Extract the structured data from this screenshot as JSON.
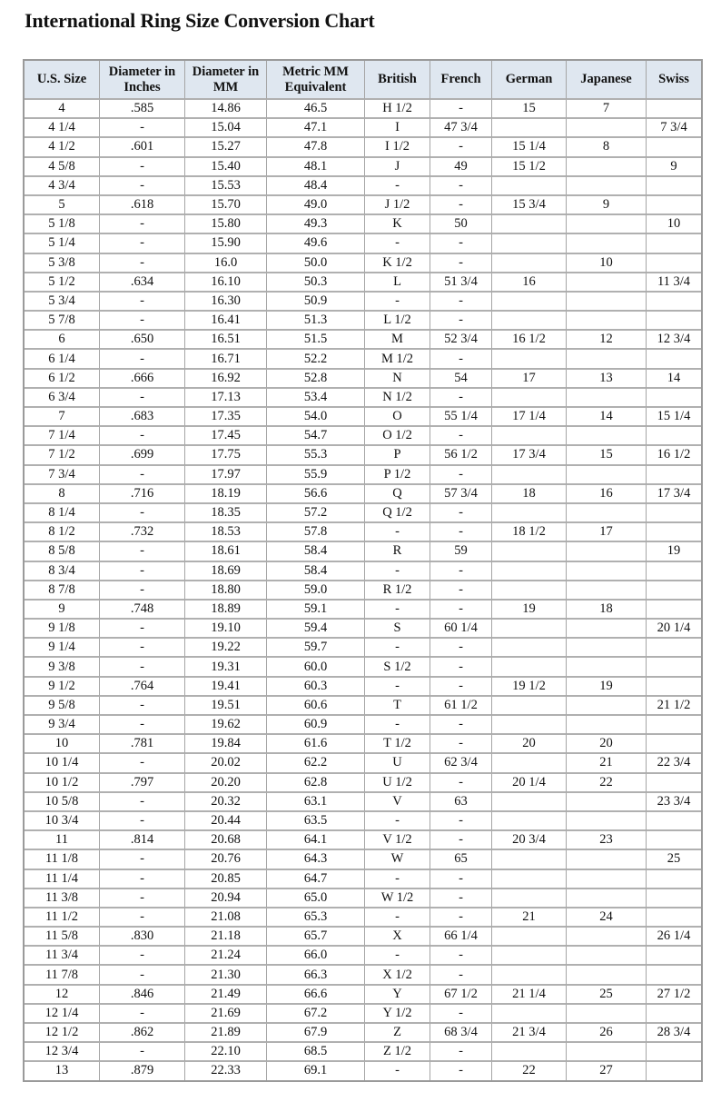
{
  "title": "International Ring Size Conversion Chart",
  "headers": [
    "U.S. Size",
    "Diameter in Inches",
    "Diameter in MM",
    "Metric MM Equivalent",
    "British",
    "French",
    "German",
    "Japanese",
    "Swiss"
  ],
  "rows": [
    [
      "4",
      ".585",
      "14.86",
      "46.5",
      "H 1/2",
      "-",
      "15",
      "7",
      ""
    ],
    [
      "4 1/4",
      "-",
      "15.04",
      "47.1",
      "I",
      "47 3/4",
      "",
      "",
      "7 3/4"
    ],
    [
      "4 1/2",
      ".601",
      "15.27",
      "47.8",
      "I 1/2",
      "-",
      "15 1/4",
      "8",
      ""
    ],
    [
      "4 5/8",
      "-",
      "15.40",
      "48.1",
      "J",
      "49",
      "15 1/2",
      "",
      "9"
    ],
    [
      "4 3/4",
      "-",
      "15.53",
      "48.4",
      "-",
      "-",
      "",
      "",
      ""
    ],
    [
      "5",
      ".618",
      "15.70",
      "49.0",
      "J 1/2",
      "-",
      "15 3/4",
      "9",
      ""
    ],
    [
      "5 1/8",
      "-",
      "15.80",
      "49.3",
      "K",
      "50",
      "",
      "",
      "10"
    ],
    [
      "5 1/4",
      "-",
      "15.90",
      "49.6",
      "-",
      "-",
      "",
      "",
      ""
    ],
    [
      "5 3/8",
      "-",
      "16.0",
      "50.0",
      "K 1/2",
      "-",
      "",
      "10",
      ""
    ],
    [
      "5 1/2",
      ".634",
      "16.10",
      "50.3",
      "L",
      "51 3/4",
      "16",
      "",
      "11 3/4"
    ],
    [
      "5 3/4",
      "-",
      "16.30",
      "50.9",
      "-",
      "-",
      "",
      "",
      ""
    ],
    [
      "5 7/8",
      "-",
      "16.41",
      "51.3",
      "L 1/2",
      "-",
      "",
      "",
      ""
    ],
    [
      "6",
      ".650",
      "16.51",
      "51.5",
      "M",
      "52 3/4",
      "16 1/2",
      "12",
      "12 3/4"
    ],
    [
      "6 1/4",
      "-",
      "16.71",
      "52.2",
      "M 1/2",
      "-",
      "",
      "",
      ""
    ],
    [
      "6 1/2",
      ".666",
      "16.92",
      "52.8",
      "N",
      "54",
      "17",
      "13",
      "14"
    ],
    [
      "6 3/4",
      "-",
      "17.13",
      "53.4",
      "N 1/2",
      "-",
      "",
      "",
      ""
    ],
    [
      "7",
      ".683",
      "17.35",
      "54.0",
      "O",
      "55 1/4",
      "17 1/4",
      "14",
      "15 1/4"
    ],
    [
      "7 1/4",
      "-",
      "17.45",
      "54.7",
      "O 1/2",
      "-",
      "",
      "",
      ""
    ],
    [
      "7 1/2",
      ".699",
      "17.75",
      "55.3",
      "P",
      "56 1/2",
      "17 3/4",
      "15",
      "16 1/2"
    ],
    [
      "7 3/4",
      "-",
      "17.97",
      "55.9",
      "P 1/2",
      "-",
      "",
      "",
      ""
    ],
    [
      "8",
      ".716",
      "18.19",
      "56.6",
      "Q",
      "57 3/4",
      "18",
      "16",
      "17 3/4"
    ],
    [
      "8 1/4",
      "-",
      "18.35",
      "57.2",
      "Q 1/2",
      "-",
      "",
      "",
      ""
    ],
    [
      "8 1/2",
      ".732",
      "18.53",
      "57.8",
      "-",
      "-",
      "18 1/2",
      "17",
      ""
    ],
    [
      "8 5/8",
      "-",
      "18.61",
      "58.4",
      "R",
      "59",
      "",
      "",
      "19"
    ],
    [
      "8 3/4",
      "-",
      "18.69",
      "58.4",
      "-",
      "-",
      "",
      "",
      ""
    ],
    [
      "8 7/8",
      "-",
      "18.80",
      "59.0",
      "R 1/2",
      "-",
      "",
      "",
      ""
    ],
    [
      "9",
      ".748",
      "18.89",
      "59.1",
      "-",
      "-",
      "19",
      "18",
      ""
    ],
    [
      "9 1/8",
      "-",
      "19.10",
      "59.4",
      "S",
      "60 1/4",
      "",
      "",
      "20 1/4"
    ],
    [
      "9 1/4",
      "-",
      "19.22",
      "59.7",
      "-",
      "-",
      "",
      "",
      ""
    ],
    [
      "9 3/8",
      "-",
      "19.31",
      "60.0",
      "S 1/2",
      "-",
      "",
      "",
      ""
    ],
    [
      "9 1/2",
      ".764",
      "19.41",
      "60.3",
      "-",
      "-",
      "19 1/2",
      "19",
      ""
    ],
    [
      "9 5/8",
      "-",
      "19.51",
      "60.6",
      "T",
      "61 1/2",
      "",
      "",
      "21 1/2"
    ],
    [
      "9 3/4",
      "-",
      "19.62",
      "60.9",
      "-",
      "-",
      "",
      "",
      ""
    ],
    [
      "10",
      ".781",
      "19.84",
      "61.6",
      "T 1/2",
      "-",
      "20",
      "20",
      ""
    ],
    [
      "10 1/4",
      "-",
      "20.02",
      "62.2",
      "U",
      "62 3/4",
      "",
      "21",
      "22 3/4"
    ],
    [
      "10 1/2",
      ".797",
      "20.20",
      "62.8",
      "U 1/2",
      "-",
      "20 1/4",
      "22",
      ""
    ],
    [
      "10 5/8",
      "-",
      "20.32",
      "63.1",
      "V",
      "63",
      "",
      "",
      "23 3/4"
    ],
    [
      "10 3/4",
      "-",
      "20.44",
      "63.5",
      "-",
      "-",
      "",
      "",
      ""
    ],
    [
      "11",
      ".814",
      "20.68",
      "64.1",
      "V 1/2",
      "-",
      "20 3/4",
      "23",
      ""
    ],
    [
      "11 1/8",
      "-",
      "20.76",
      "64.3",
      "W",
      "65",
      "",
      "",
      "25"
    ],
    [
      "11 1/4",
      "-",
      "20.85",
      "64.7",
      "-",
      "-",
      "",
      "",
      ""
    ],
    [
      "11 3/8",
      "-",
      "20.94",
      "65.0",
      "W 1/2",
      "-",
      "",
      "",
      ""
    ],
    [
      "11 1/2",
      "-",
      "21.08",
      "65.3",
      "-",
      "-",
      "21",
      "24",
      ""
    ],
    [
      "11 5/8",
      ".830",
      "21.18",
      "65.7",
      "X",
      "66 1/4",
      "",
      "",
      "26 1/4"
    ],
    [
      "11 3/4",
      "-",
      "21.24",
      "66.0",
      "-",
      "-",
      "",
      "",
      ""
    ],
    [
      "11 7/8",
      "-",
      "21.30",
      "66.3",
      "X 1/2",
      "-",
      "",
      "",
      ""
    ],
    [
      "12",
      ".846",
      "21.49",
      "66.6",
      "Y",
      "67 1/2",
      "21 1/4",
      "25",
      "27 1/2"
    ],
    [
      "12 1/4",
      "-",
      "21.69",
      "67.2",
      "Y 1/2",
      "-",
      "",
      "",
      ""
    ],
    [
      "12 1/2",
      ".862",
      "21.89",
      "67.9",
      "Z",
      "68 3/4",
      "21 3/4",
      "26",
      "28 3/4"
    ],
    [
      "12 3/4",
      "-",
      "22.10",
      "68.5",
      "Z 1/2",
      "-",
      "",
      "",
      ""
    ],
    [
      "13",
      ".879",
      "22.33",
      "69.1",
      "-",
      "-",
      "22",
      "27",
      ""
    ]
  ]
}
